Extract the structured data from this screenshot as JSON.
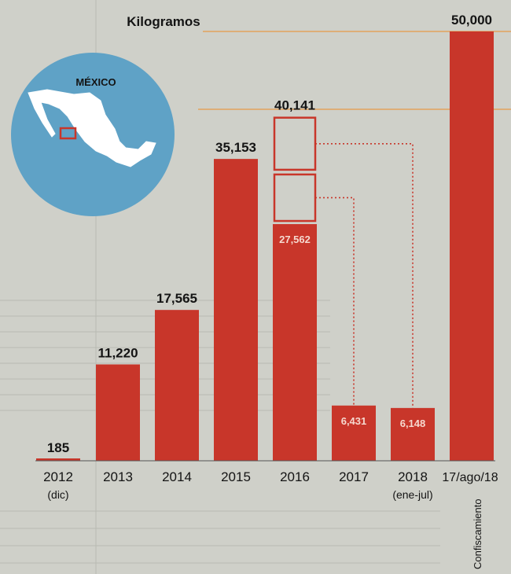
{
  "header": {
    "unit_label": "Kilogramos"
  },
  "map": {
    "label": "MÉXICO"
  },
  "colors": {
    "bar": "#c8362a",
    "background": "#cfd0c9",
    "globe": "#5fa2c6",
    "accent_line": "#e3a35d",
    "dotted": "#c8362a",
    "text": "#141414"
  },
  "chart_data": {
    "type": "bar",
    "title": "",
    "xlabel": "",
    "ylabel": "Kilogramos",
    "ylim": [
      0,
      50000
    ],
    "categories": [
      {
        "label": "2012",
        "sublabel": "(dic)"
      },
      {
        "label": "2013",
        "sublabel": ""
      },
      {
        "label": "2014",
        "sublabel": ""
      },
      {
        "label": "2015",
        "sublabel": ""
      },
      {
        "label": "2016",
        "sublabel": ""
      },
      {
        "label": "2017",
        "sublabel": ""
      },
      {
        "label": "2018",
        "sublabel": "(ene-jul)"
      },
      {
        "label": "17/ago/18",
        "sublabel": "Confiscamiento"
      }
    ],
    "values": [
      185,
      11220,
      17565,
      35153,
      27562,
      6431,
      6148,
      50000
    ],
    "value_labels": [
      "185",
      "11,220",
      "17,565",
      "35,153",
      "27,562",
      "6,431",
      "6,148",
      "50,000"
    ],
    "annotations": [
      {
        "category": "2016",
        "value": 40141,
        "label": "40,141",
        "stacked_boxes": [
          6431,
          6148
        ]
      }
    ]
  }
}
